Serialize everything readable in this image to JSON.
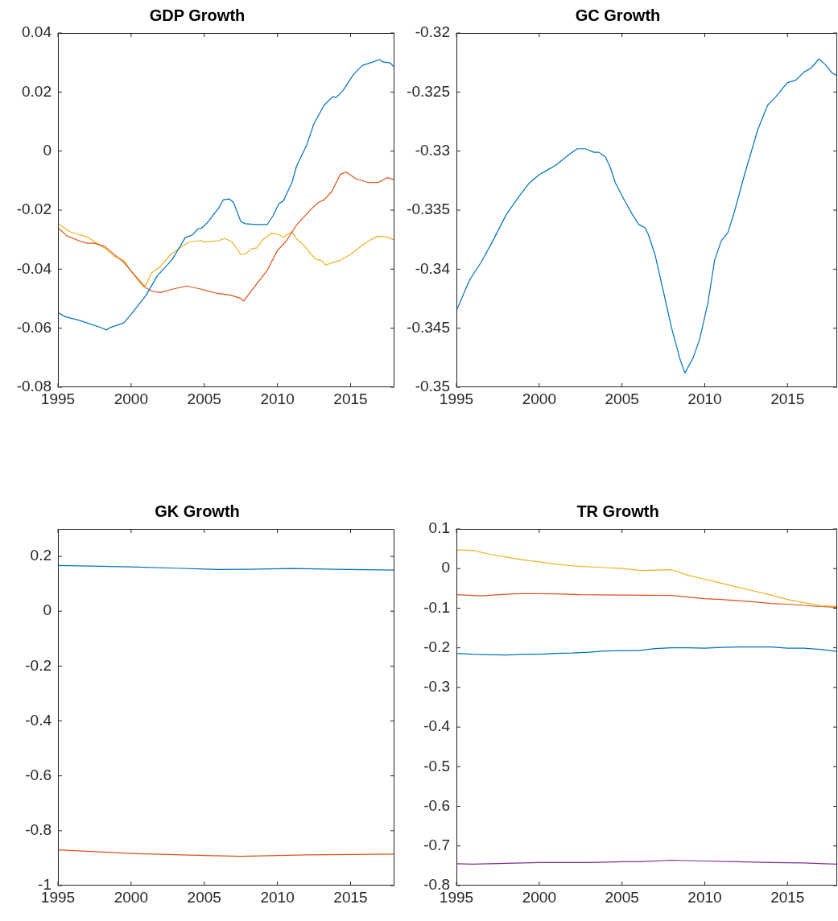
{
  "chart_data": [
    {
      "type": "line",
      "title": "GDP Growth",
      "xlim": [
        1995,
        2018
      ],
      "xticks": [
        1995,
        2000,
        2005,
        2010,
        2015
      ],
      "ylim": [
        -0.08,
        0.04
      ],
      "yticks": [
        -0.08,
        -0.06,
        -0.04,
        -0.02,
        0,
        0.02,
        0.04
      ],
      "series": [
        {
          "color": "#0072bd",
          "x": [
            1995,
            1995.5,
            1996.5,
            1998,
            1998.3,
            1998.6,
            1999.5,
            2000,
            2001,
            2001.8,
            2002.8,
            2003.7,
            2004.2,
            2004.6,
            2004.8,
            2005.2,
            2006,
            2006.3,
            2006.7,
            2007,
            2007.5,
            2007.8,
            2008.5,
            2009.3,
            2009.7,
            2010.1,
            2010.4,
            2011,
            2011.3,
            2012,
            2012.5,
            2013.2,
            2013.8,
            2014,
            2014.5,
            2015.2,
            2015.8,
            2016.3,
            2017,
            2017.2,
            2017.7,
            2018
          ],
          "values": [
            -0.0547,
            -0.0561,
            -0.0574,
            -0.0599,
            -0.0606,
            -0.0597,
            -0.0582,
            -0.0553,
            -0.049,
            -0.0422,
            -0.0368,
            -0.0293,
            -0.0284,
            -0.0262,
            -0.0262,
            -0.0243,
            -0.0192,
            -0.0165,
            -0.0162,
            -0.0174,
            -0.0239,
            -0.0246,
            -0.0249,
            -0.0249,
            -0.0219,
            -0.0178,
            -0.0169,
            -0.0106,
            -0.0052,
            0.002,
            0.0093,
            0.0156,
            0.0185,
            0.0181,
            0.0206,
            0.026,
            0.029,
            0.0298,
            0.031,
            0.0302,
            0.0299,
            0.0284
          ]
        },
        {
          "color": "#d95319",
          "x": [
            1995,
            1995.6,
            1996.5,
            1997,
            1997.5,
            1998.2,
            1999.5,
            2000.2,
            2001,
            2001.4,
            2002,
            2002.8,
            2003.8,
            2004.8,
            2005.8,
            2006.8,
            2007.5,
            2007.7,
            2008.3,
            2009.3,
            2010,
            2010.6,
            2011.3,
            2012.3,
            2012.8,
            2013.2,
            2013.7,
            2014.3,
            2014.7,
            2015.4,
            2016.2,
            2016.9,
            2017.5,
            2018
          ],
          "values": [
            -0.026,
            -0.0287,
            -0.0305,
            -0.0312,
            -0.0312,
            -0.0323,
            -0.0377,
            -0.0418,
            -0.0463,
            -0.0474,
            -0.0479,
            -0.0468,
            -0.0457,
            -0.0468,
            -0.0481,
            -0.0488,
            -0.0499,
            -0.0508,
            -0.0468,
            -0.0404,
            -0.0337,
            -0.0305,
            -0.0251,
            -0.0197,
            -0.0174,
            -0.0165,
            -0.0138,
            -0.0079,
            -0.0071,
            -0.0095,
            -0.0106,
            -0.0106,
            -0.009,
            -0.0097
          ]
        },
        {
          "color": "#edb120",
          "x": [
            1995,
            1995.8,
            1996.5,
            1997,
            1997.5,
            1998.3,
            1998.8,
            1999.5,
            2000,
            2000.8,
            2001,
            2001.4,
            2002,
            2002.7,
            2003.5,
            2004,
            2004.8,
            2005,
            2006,
            2006.4,
            2006.9,
            2007.5,
            2007.8,
            2008.2,
            2008.6,
            2009,
            2009.6,
            2010.1,
            2010.4,
            2010.7,
            2011,
            2011.3,
            2011.8,
            2012.6,
            2013,
            2013.3,
            2013.7,
            2014.3,
            2015,
            2016,
            2016.8,
            2017.5,
            2018
          ],
          "values": [
            -0.0244,
            -0.0273,
            -0.0284,
            -0.0291,
            -0.0307,
            -0.0332,
            -0.0355,
            -0.0371,
            -0.0406,
            -0.0459,
            -0.0454,
            -0.0413,
            -0.0391,
            -0.035,
            -0.0323,
            -0.0307,
            -0.0303,
            -0.0308,
            -0.0303,
            -0.0296,
            -0.0307,
            -0.035,
            -0.035,
            -0.0332,
            -0.0328,
            -0.03,
            -0.0278,
            -0.0282,
            -0.0293,
            -0.0281,
            -0.0274,
            -0.0296,
            -0.0319,
            -0.0366,
            -0.0371,
            -0.0386,
            -0.0379,
            -0.037,
            -0.035,
            -0.0312,
            -0.0289,
            -0.0291,
            -0.0302
          ]
        }
      ]
    },
    {
      "type": "line",
      "title": "GC Growth",
      "xlim": [
        1995,
        2018
      ],
      "xticks": [
        1995,
        2000,
        2005,
        2010,
        2015
      ],
      "ylim": [
        -0.35,
        -0.32
      ],
      "yticks": [
        -0.35,
        -0.345,
        -0.34,
        -0.335,
        -0.33,
        -0.325,
        -0.32
      ],
      "series": [
        {
          "color": "#0072bd",
          "x": [
            1995,
            1995.8,
            1996.5,
            1997.2,
            1998,
            1998.8,
            1999.4,
            2000,
            2000.5,
            2001,
            2001.8,
            2002.3,
            2002.8,
            2003.3,
            2003.6,
            2004,
            2004.3,
            2004.6,
            2005.2,
            2005.6,
            2006,
            2006.4,
            2006.6,
            2007,
            2007.6,
            2008,
            2008.5,
            2008.8,
            2009.3,
            2009.7,
            2010.2,
            2010.6,
            2011,
            2011.4,
            2011.8,
            2012.4,
            2013.2,
            2013.8,
            2014.3,
            2014.7,
            2015,
            2015.5,
            2016,
            2016.4,
            2016.9,
            2017.3,
            2017.7,
            2018
          ],
          "values": [
            -0.3435,
            -0.3409,
            -0.3394,
            -0.3376,
            -0.3354,
            -0.3338,
            -0.3327,
            -0.332,
            -0.3316,
            -0.3312,
            -0.3303,
            -0.3298,
            -0.3298,
            -0.3301,
            -0.3301,
            -0.3305,
            -0.3314,
            -0.3327,
            -0.3343,
            -0.3353,
            -0.3362,
            -0.3365,
            -0.3371,
            -0.3388,
            -0.3425,
            -0.345,
            -0.3476,
            -0.3488,
            -0.3475,
            -0.3459,
            -0.3428,
            -0.3392,
            -0.3376,
            -0.3369,
            -0.3351,
            -0.332,
            -0.3282,
            -0.3261,
            -0.3254,
            -0.3247,
            -0.3242,
            -0.324,
            -0.3233,
            -0.323,
            -0.3222,
            -0.3227,
            -0.3234,
            -0.3236
          ]
        }
      ]
    },
    {
      "type": "line",
      "title": "GK Growth",
      "xlim": [
        1995,
        2018
      ],
      "xticks": [
        1995,
        2000,
        2005,
        2010,
        2015
      ],
      "ylim": [
        -1,
        0.3
      ],
      "yticks": [
        -1,
        -0.8,
        -0.6,
        -0.4,
        -0.2,
        0,
        0.2
      ],
      "series": [
        {
          "color": "#0072bd",
          "x": [
            1995,
            2000,
            2003,
            2006,
            2008,
            2011,
            2014,
            2018
          ],
          "values": [
            0.167,
            0.162,
            0.157,
            0.152,
            0.153,
            0.156,
            0.153,
            0.15
          ]
        },
        {
          "color": "#d95319",
          "x": [
            1995,
            2000,
            2004,
            2007.5,
            2012,
            2018
          ],
          "values": [
            -0.87,
            -0.883,
            -0.889,
            -0.893,
            -0.888,
            -0.885
          ]
        }
      ]
    },
    {
      "type": "line",
      "title": "TR Growth",
      "xlim": [
        1995,
        2018
      ],
      "xticks": [
        1995,
        2000,
        2005,
        2010,
        2015
      ],
      "ylim": [
        -0.8,
        0.1
      ],
      "yticks": [
        -0.8,
        -0.7,
        -0.6,
        -0.5,
        -0.4,
        -0.3,
        -0.2,
        -0.1,
        0,
        0.1
      ],
      "series": [
        {
          "color": "#0072bd",
          "x": [
            1995,
            1996,
            1997,
            1998,
            1999,
            2000,
            2001,
            2002,
            2003,
            2004,
            2005,
            2006,
            2007,
            2008,
            2009,
            2010,
            2011,
            2012,
            2013,
            2014,
            2015,
            2016,
            2017,
            2018
          ],
          "values": [
            -0.214,
            -0.216,
            -0.217,
            -0.218,
            -0.216,
            -0.216,
            -0.214,
            -0.213,
            -0.211,
            -0.208,
            -0.207,
            -0.207,
            -0.202,
            -0.2,
            -0.2,
            -0.201,
            -0.199,
            -0.198,
            -0.198,
            -0.198,
            -0.201,
            -0.201,
            -0.204,
            -0.209
          ]
        },
        {
          "color": "#d95319",
          "x": [
            1995,
            1996.5,
            1998,
            1999,
            2001,
            2002.5,
            2005,
            2008,
            2009,
            2010,
            2011,
            2012,
            2013,
            2014,
            2015,
            2016,
            2017,
            2018
          ],
          "values": [
            -0.066,
            -0.069,
            -0.065,
            -0.063,
            -0.064,
            -0.066,
            -0.067,
            -0.068,
            -0.072,
            -0.076,
            -0.078,
            -0.081,
            -0.084,
            -0.088,
            -0.09,
            -0.093,
            -0.096,
            -0.098
          ]
        },
        {
          "color": "#edb120",
          "x": [
            1995,
            1996,
            1997,
            1998,
            1999,
            2000,
            2001,
            2002,
            2005,
            2006.2,
            2008,
            2009,
            2010,
            2011,
            2012,
            2013,
            2014,
            2015,
            2016,
            2017,
            2018
          ],
          "values": [
            0.047,
            0.046,
            0.036,
            0.029,
            0.022,
            0.017,
            0.011,
            0.007,
            0,
            -0.005,
            -0.003,
            -0.017,
            -0.027,
            -0.037,
            -0.047,
            -0.057,
            -0.067,
            -0.078,
            -0.086,
            -0.093,
            -0.096
          ]
        },
        {
          "color": "#7e2f8e",
          "x": [
            1995,
            1996,
            1998,
            2000,
            2003,
            2005,
            2006,
            2008,
            2010,
            2012,
            2014,
            2016,
            2018
          ],
          "values": [
            -0.745,
            -0.746,
            -0.744,
            -0.742,
            -0.742,
            -0.74,
            -0.74,
            -0.736,
            -0.738,
            -0.74,
            -0.742,
            -0.743,
            -0.746
          ]
        }
      ]
    }
  ]
}
